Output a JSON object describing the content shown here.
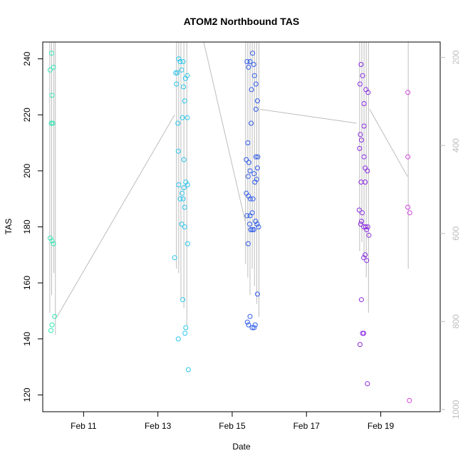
{
  "chart_data": {
    "type": "scatter",
    "title": "ATOM2 Northbound TAS",
    "xlabel": "Date",
    "ylabel": "TAS",
    "xlim": [
      9.9,
      20.6
    ],
    "ylim": [
      114,
      246
    ],
    "x_ticks": [
      {
        "value": 11,
        "label": "Feb 11"
      },
      {
        "value": 13,
        "label": "Feb 13"
      },
      {
        "value": 15,
        "label": "Feb 15"
      },
      {
        "value": 17,
        "label": "Feb 17"
      },
      {
        "value": 19,
        "label": "Feb 19"
      }
    ],
    "y_ticks": [
      120,
      140,
      160,
      180,
      200,
      220,
      240
    ],
    "y2_ticks": [
      {
        "value": 200,
        "label": "200"
      },
      {
        "value": 400,
        "label": "400"
      },
      {
        "value": 600,
        "label": "600"
      },
      {
        "value": 800,
        "label": "800"
      },
      {
        "value": 1000,
        "label": "1000"
      }
    ],
    "y2lim": [
      1005,
      165
    ],
    "grid": false,
    "line_color": "#bdbdbd",
    "pressure_lines": [
      {
        "x": 10.09,
        "y2": [
          165,
          780
        ]
      },
      {
        "x": 10.14,
        "y2": [
          165,
          740
        ]
      },
      {
        "x": 10.2,
        "y2": [
          165,
          690
        ]
      },
      {
        "x": 10.24,
        "y2": [
          165,
          830
        ]
      },
      {
        "x": 13.5,
        "y2": [
          165,
          680
        ]
      },
      {
        "x": 13.56,
        "y2": [
          165,
          690
        ]
      },
      {
        "x": 13.62,
        "y2": [
          165,
          750
        ]
      },
      {
        "x": 13.7,
        "y2": [
          165,
          770
        ]
      },
      {
        "x": 13.78,
        "y2": [
          165,
          810
        ]
      },
      {
        "x": 15.36,
        "y2": [
          165,
          670
        ]
      },
      {
        "x": 15.42,
        "y2": [
          165,
          700
        ]
      },
      {
        "x": 15.48,
        "y2": [
          165,
          740
        ]
      },
      {
        "x": 15.54,
        "y2": [
          165,
          680
        ]
      },
      {
        "x": 15.6,
        "y2": [
          165,
          720
        ]
      },
      {
        "x": 15.66,
        "y2": [
          165,
          760
        ]
      },
      {
        "x": 15.72,
        "y2": [
          165,
          790
        ]
      },
      {
        "x": 18.43,
        "y2": [
          165,
          640
        ]
      },
      {
        "x": 18.49,
        "y2": [
          165,
          620
        ]
      },
      {
        "x": 18.55,
        "y2": [
          165,
          660
        ]
      },
      {
        "x": 18.61,
        "y2": [
          165,
          700
        ]
      },
      {
        "x": 18.67,
        "y2": [
          165,
          780
        ]
      },
      {
        "x": 19.74,
        "y2": [
          165,
          680
        ]
      }
    ],
    "trajectory_segments": [
      [
        [
          10.29,
          148
        ],
        [
          13.45,
          220
        ]
      ],
      [
        [
          14.2,
          248
        ],
        [
          15.35,
          182
        ]
      ],
      [
        [
          15.75,
          222
        ],
        [
          18.35,
          217
        ]
      ],
      [
        [
          18.7,
          222
        ],
        [
          19.72,
          198
        ]
      ]
    ],
    "series": [
      {
        "color": "#2de8b2",
        "points": [
          [
            10.1,
            236
          ],
          [
            10.14,
            242
          ],
          [
            10.19,
            237
          ],
          [
            10.15,
            227
          ],
          [
            10.13,
            217
          ],
          [
            10.17,
            217
          ],
          [
            10.1,
            176
          ],
          [
            10.15,
            175
          ],
          [
            10.19,
            174
          ],
          [
            10.22,
            148
          ],
          [
            10.12,
            143
          ],
          [
            10.15,
            145
          ]
        ]
      },
      {
        "color": "#29c6ea",
        "points": [
          [
            13.45,
            169
          ],
          [
            13.5,
            231
          ],
          [
            13.52,
            235
          ],
          [
            13.56,
            240
          ],
          [
            13.6,
            239
          ],
          [
            13.64,
            236
          ],
          [
            13.68,
            239
          ],
          [
            13.69,
            230
          ],
          [
            13.72,
            225
          ],
          [
            13.74,
            233
          ],
          [
            13.79,
            234
          ],
          [
            13.54,
            217
          ],
          [
            13.55,
            207
          ],
          [
            13.66,
            219
          ],
          [
            13.79,
            219
          ],
          [
            13.7,
            204
          ],
          [
            13.56,
            195
          ],
          [
            13.6,
            190
          ],
          [
            13.65,
            192
          ],
          [
            13.68,
            190
          ],
          [
            13.7,
            194
          ],
          [
            13.75,
            196
          ],
          [
            13.8,
            195
          ],
          [
            13.72,
            187
          ],
          [
            13.64,
            181
          ],
          [
            13.72,
            180
          ],
          [
            13.8,
            174
          ],
          [
            13.67,
            154
          ],
          [
            13.75,
            144
          ],
          [
            13.73,
            142
          ],
          [
            13.55,
            140
          ],
          [
            13.82,
            129
          ],
          [
            13.48,
            235
          ]
        ]
      },
      {
        "color": "#2e5be8",
        "points": [
          [
            15.4,
            239
          ],
          [
            15.44,
            237
          ],
          [
            15.48,
            239
          ],
          [
            15.55,
            242
          ],
          [
            15.58,
            238
          ],
          [
            15.6,
            234
          ],
          [
            15.64,
            231
          ],
          [
            15.52,
            229
          ],
          [
            15.68,
            225
          ],
          [
            15.64,
            222
          ],
          [
            15.51,
            217
          ],
          [
            15.42,
            210
          ],
          [
            15.38,
            204
          ],
          [
            15.45,
            203
          ],
          [
            15.48,
            200
          ],
          [
            15.43,
            198
          ],
          [
            15.59,
            199
          ],
          [
            15.64,
            205
          ],
          [
            15.69,
            205
          ],
          [
            15.68,
            201
          ],
          [
            15.66,
            197
          ],
          [
            15.61,
            196
          ],
          [
            15.38,
            192
          ],
          [
            15.44,
            191
          ],
          [
            15.49,
            190
          ],
          [
            15.56,
            190
          ],
          [
            15.4,
            184
          ],
          [
            15.48,
            184
          ],
          [
            15.54,
            185
          ],
          [
            15.47,
            181
          ],
          [
            15.5,
            179
          ],
          [
            15.54,
            179
          ],
          [
            15.58,
            179
          ],
          [
            15.63,
            182
          ],
          [
            15.67,
            181
          ],
          [
            15.71,
            180
          ],
          [
            15.43,
            174
          ],
          [
            15.68,
            156
          ],
          [
            15.48,
            148
          ],
          [
            15.41,
            146
          ],
          [
            15.44,
            145
          ],
          [
            15.54,
            144
          ],
          [
            15.59,
            144
          ],
          [
            15.62,
            145
          ]
        ]
      },
      {
        "color": "#8a2be2",
        "points": [
          [
            18.44,
            231
          ],
          [
            18.47,
            238
          ],
          [
            18.51,
            234
          ],
          [
            18.55,
            224
          ],
          [
            18.6,
            229
          ],
          [
            18.66,
            228
          ],
          [
            18.45,
            213
          ],
          [
            18.48,
            211
          ],
          [
            18.55,
            216
          ],
          [
            18.43,
            208
          ],
          [
            18.55,
            205
          ],
          [
            18.58,
            201
          ],
          [
            18.64,
            200
          ],
          [
            18.47,
            196
          ],
          [
            18.58,
            196
          ],
          [
            18.42,
            186
          ],
          [
            18.5,
            185
          ],
          [
            18.48,
            182
          ],
          [
            18.46,
            181
          ],
          [
            18.54,
            180
          ],
          [
            18.59,
            180
          ],
          [
            18.62,
            179
          ],
          [
            18.65,
            180
          ],
          [
            18.58,
            170
          ],
          [
            18.54,
            169
          ],
          [
            18.62,
            168
          ],
          [
            18.68,
            177
          ],
          [
            18.48,
            154
          ],
          [
            18.51,
            142
          ],
          [
            18.54,
            142
          ],
          [
            18.44,
            138
          ],
          [
            18.64,
            124
          ]
        ]
      },
      {
        "color": "#d43fe0",
        "points": [
          [
            19.73,
            228
          ],
          [
            19.73,
            205
          ],
          [
            19.73,
            187
          ],
          [
            19.78,
            185
          ],
          [
            19.77,
            118
          ]
        ]
      }
    ]
  }
}
